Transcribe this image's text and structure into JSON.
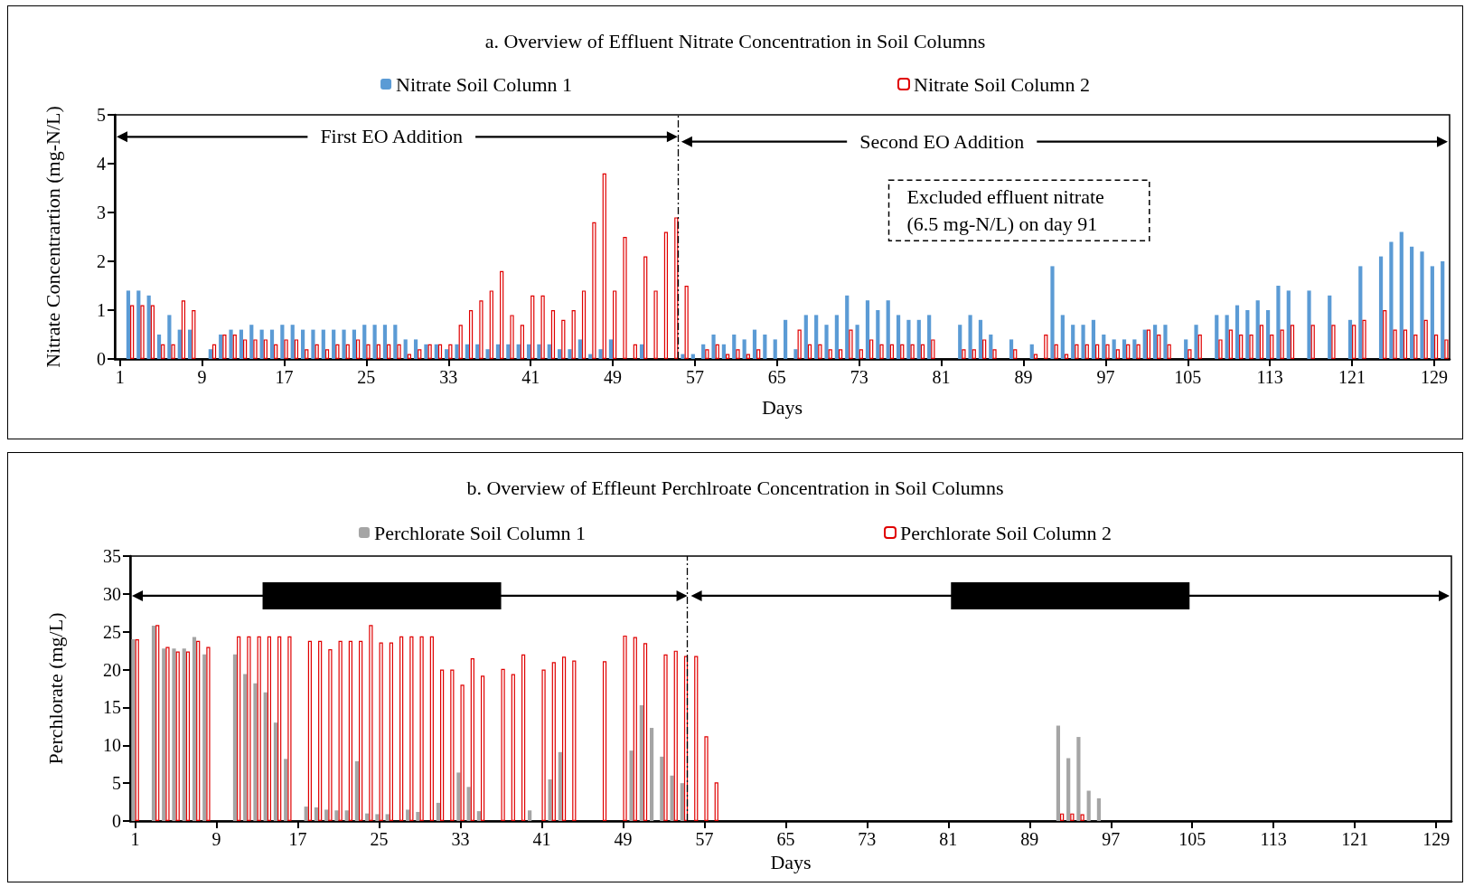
{
  "chart_data": [
    {
      "type": "bar",
      "title": "a. Overview of Effluent Nitrate Concentration in Soil Columns",
      "xlabel": "Days",
      "ylabel": "Nitrate Concentrartion (mg-N/L)",
      "legend": "top",
      "grid": false,
      "x": [
        2,
        3,
        4,
        5,
        6,
        7,
        8,
        9,
        10,
        11,
        12,
        13,
        14,
        15,
        16,
        17,
        18,
        19,
        20,
        21,
        22,
        23,
        24,
        25,
        26,
        27,
        28,
        29,
        30,
        31,
        32,
        33,
        34,
        35,
        36,
        37,
        38,
        39,
        40,
        41,
        42,
        43,
        44,
        45,
        46,
        47,
        48,
        49,
        50,
        51,
        52,
        53,
        54,
        55,
        56,
        57,
        58,
        59,
        60,
        61,
        62,
        63,
        64,
        65,
        66,
        67,
        68,
        69,
        70,
        71,
        72,
        73,
        74,
        75,
        76,
        77,
        78,
        79,
        80,
        81,
        82,
        83,
        84,
        85,
        86,
        87,
        88,
        89,
        90,
        91,
        92,
        93,
        94,
        95,
        96,
        97,
        98,
        99,
        100,
        101,
        102,
        103,
        104,
        105,
        106,
        107,
        108,
        109,
        110,
        111,
        112,
        113,
        114,
        115,
        116,
        117,
        118,
        119,
        120,
        121,
        122,
        123,
        124,
        125,
        126,
        127,
        128,
        129,
        130
      ],
      "xlim": [
        0.5,
        130.5
      ],
      "xticks": [
        1,
        9,
        17,
        25,
        33,
        41,
        49,
        57,
        65,
        73,
        81,
        89,
        97,
        105,
        113,
        121,
        129
      ],
      "ylim": [
        0,
        5
      ],
      "yticks": [
        0,
        1,
        2,
        3,
        4,
        5
      ],
      "series": [
        {
          "name": "Nitrate Soil Column 1",
          "color": "#5b9bd5",
          "values": [
            1.4,
            1.4,
            1.3,
            0.5,
            0.9,
            0.6,
            0.6,
            null,
            0.2,
            0.5,
            0.6,
            0.6,
            0.7,
            0.6,
            0.6,
            0.7,
            0.7,
            0.6,
            0.6,
            0.6,
            0.6,
            0.6,
            0.6,
            0.7,
            0.7,
            0.7,
            0.7,
            0.4,
            0.4,
            0.3,
            0.3,
            0.2,
            0.3,
            0.3,
            0.3,
            0.2,
            0.3,
            0.3,
            0.3,
            0.3,
            0.3,
            0.3,
            0.2,
            0.2,
            0.4,
            0.1,
            0.2,
            0.4,
            null,
            null,
            0.3,
            null,
            null,
            null,
            0.1,
            0.1,
            0.3,
            0.5,
            0.3,
            0.5,
            0.4,
            0.6,
            0.5,
            0.4,
            0.8,
            0.2,
            0.9,
            0.9,
            0.7,
            0.9,
            1.3,
            0.7,
            1.2,
            1.0,
            1.2,
            0.9,
            0.8,
            0.8,
            0.9,
            null,
            null,
            0.7,
            0.9,
            0.8,
            0.5,
            null,
            0.4,
            null,
            0.3,
            null,
            1.9,
            0.9,
            0.7,
            0.7,
            0.8,
            0.5,
            0.4,
            0.4,
            0.4,
            0.6,
            0.7,
            0.7,
            null,
            0.4,
            0.7,
            null,
            0.9,
            0.9,
            1.1,
            1.0,
            1.2,
            1.0,
            1.5,
            1.4,
            null,
            1.4,
            null,
            1.3,
            null,
            0.8,
            1.9,
            null,
            2.1,
            2.4,
            2.6,
            2.3,
            2.2,
            1.9,
            2.0
          ]
        },
        {
          "name": "Nitrate Soil Column 2",
          "color": "#e00000",
          "values": [
            1.1,
            1.1,
            1.1,
            0.3,
            0.3,
            1.2,
            1.0,
            null,
            0.3,
            0.5,
            0.5,
            0.4,
            0.4,
            0.4,
            0.3,
            0.4,
            0.4,
            0.2,
            0.3,
            0.2,
            0.3,
            0.3,
            0.4,
            0.3,
            0.3,
            0.3,
            0.3,
            0.1,
            0.2,
            0.3,
            0.3,
            0.3,
            0.7,
            1.0,
            1.2,
            1.4,
            1.8,
            0.9,
            0.7,
            1.3,
            1.3,
            1.0,
            0.8,
            1.0,
            1.4,
            2.8,
            3.8,
            1.4,
            2.5,
            0.3,
            2.1,
            1.4,
            2.6,
            2.9,
            1.5,
            null,
            0.2,
            0.3,
            0.1,
            0.2,
            0.1,
            0.2,
            null,
            null,
            null,
            0.6,
            0.3,
            0.3,
            0.2,
            0.2,
            0.6,
            0.2,
            0.4,
            0.3,
            0.3,
            0.3,
            0.3,
            0.3,
            0.4,
            null,
            null,
            0.2,
            0.2,
            0.4,
            0.2,
            null,
            0.2,
            null,
            0.1,
            0.5,
            0.3,
            0.1,
            0.3,
            0.3,
            0.3,
            0.3,
            0.2,
            0.3,
            0.3,
            0.6,
            0.5,
            0.3,
            null,
            0.2,
            0.5,
            null,
            0.4,
            0.6,
            0.5,
            0.5,
            0.7,
            0.5,
            0.6,
            0.7,
            null,
            0.7,
            null,
            0.7,
            null,
            0.7,
            0.8,
            null,
            1.0,
            0.6,
            0.6,
            0.5,
            0.8,
            0.5,
            0.4
          ]
        }
      ],
      "ref_lines": [
        {
          "axis": "x",
          "value": 55.5,
          "line_style": "dashdot"
        }
      ],
      "annotations": [
        "First EO Addition",
        "Second EO Addition",
        "Excluded effluent nitrate\n(6.5 mg-N/L) on day 91"
      ]
    },
    {
      "type": "bar",
      "title": "b. Overview of Effleunt Perchlroate Concentration in Soil Columns",
      "xlabel": "Days",
      "ylabel": "Perchlorate (mg/L)",
      "legend": "top",
      "grid": false,
      "x": [
        1,
        2,
        3,
        4,
        5,
        6,
        7,
        8,
        9,
        10,
        11,
        12,
        13,
        14,
        15,
        16,
        17,
        18,
        19,
        20,
        21,
        22,
        23,
        24,
        25,
        26,
        27,
        28,
        29,
        30,
        31,
        32,
        33,
        34,
        35,
        36,
        37,
        38,
        39,
        40,
        41,
        42,
        43,
        44,
        45,
        46,
        47,
        48,
        49,
        50,
        51,
        52,
        53,
        54,
        55,
        56,
        57,
        58,
        59,
        60,
        61,
        62,
        63,
        64,
        65,
        66,
        67,
        68,
        69,
        70,
        71,
        72,
        73,
        74,
        75,
        76,
        77,
        78,
        79,
        80,
        81,
        82,
        83,
        84,
        85,
        86,
        87,
        88,
        89,
        90,
        91,
        92,
        93,
        94,
        95,
        96
      ],
      "xlim": [
        0.5,
        130.5
      ],
      "xticks": [
        1,
        9,
        17,
        25,
        33,
        41,
        49,
        57,
        65,
        73,
        81,
        89,
        97,
        105,
        113,
        121,
        129
      ],
      "ylim": [
        0,
        35
      ],
      "yticks": [
        0,
        5,
        10,
        15,
        20,
        25,
        30,
        35
      ],
      "series": [
        {
          "name": "Perchlorate Soil Column 1",
          "color": "#a5a5a5",
          "values": [
            24.0,
            null,
            25.8,
            22.8,
            22.8,
            22.8,
            24.3,
            22.0,
            null,
            null,
            22.0,
            19.4,
            18.2,
            17.0,
            13.0,
            8.2,
            null,
            1.9,
            1.8,
            1.5,
            1.4,
            1.4,
            7.9,
            1.0,
            0.9,
            0.9,
            null,
            1.5,
            1.2,
            null,
            2.4,
            null,
            6.4,
            4.5,
            1.3,
            null,
            null,
            null,
            null,
            1.4,
            null,
            5.5,
            9.1,
            null,
            null,
            null,
            null,
            null,
            null,
            9.3,
            15.3,
            12.3,
            8.5,
            6.0,
            5.0,
            null,
            null,
            null,
            null,
            null,
            null,
            null,
            null,
            null,
            null,
            null,
            null,
            null,
            null,
            null,
            null,
            null,
            null,
            null,
            null,
            null,
            null,
            null,
            null,
            null,
            null,
            null,
            null,
            null,
            null,
            null,
            null,
            null,
            null,
            null,
            null,
            12.6,
            8.3,
            11.1,
            4.0,
            3.0
          ]
        },
        {
          "name": "Perchlorate Soil Column 2",
          "color": "#e00000",
          "values": [
            24.0,
            null,
            25.9,
            23.0,
            22.4,
            22.4,
            23.8,
            23.0,
            null,
            null,
            24.4,
            24.4,
            24.4,
            24.4,
            24.4,
            24.4,
            null,
            23.8,
            23.8,
            22.7,
            23.8,
            23.8,
            23.8,
            25.9,
            23.6,
            23.6,
            24.4,
            24.4,
            24.4,
            24.4,
            20.0,
            20.0,
            18.0,
            21.5,
            19.2,
            null,
            20.1,
            19.4,
            22.0,
            null,
            20.0,
            21.0,
            21.7,
            21.2,
            null,
            null,
            21.1,
            null,
            24.5,
            24.3,
            23.5,
            null,
            22.0,
            22.5,
            21.8,
            21.8,
            11.2,
            5.1,
            null,
            null,
            null,
            null,
            null,
            null,
            null,
            null,
            null,
            null,
            null,
            null,
            null,
            null,
            null,
            null,
            null,
            null,
            null,
            null,
            null,
            null,
            null,
            null,
            null,
            null,
            null,
            null,
            null,
            null,
            null,
            null,
            null,
            1.0,
            1.0,
            0.9,
            null,
            null
          ]
        }
      ],
      "ref_lines": [
        {
          "axis": "x",
          "value": 55.5,
          "line_style": "dashdot"
        }
      ]
    }
  ]
}
